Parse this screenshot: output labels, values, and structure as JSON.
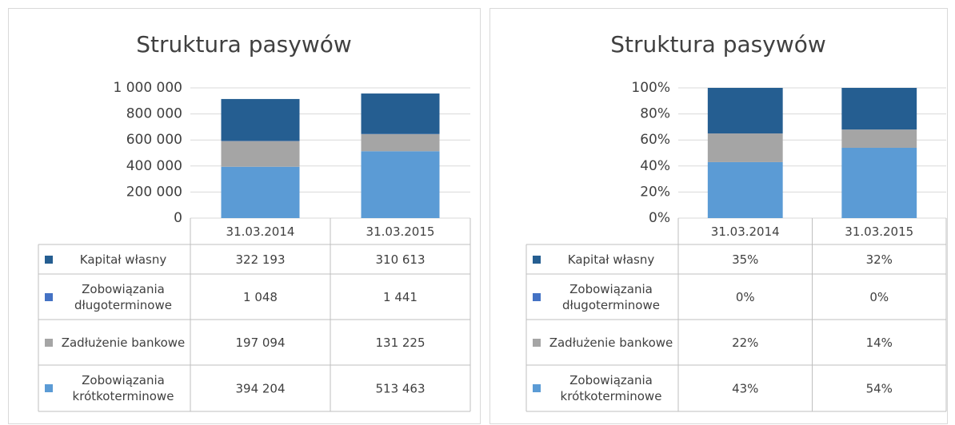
{
  "chart_data": [
    {
      "type": "bar",
      "stacked": true,
      "title": "Struktura pasywów",
      "categories": [
        "31.03.2014",
        "31.03.2015"
      ],
      "series": [
        {
          "name": "Kapitał własny",
          "color": "#255e91",
          "values": [
            322193,
            310613
          ],
          "value_labels": [
            "322 193",
            "310 613"
          ]
        },
        {
          "name": "Zobowiązania długoterminowe",
          "color": "#4472c4",
          "values": [
            1048,
            1441
          ],
          "value_labels": [
            "1 048",
            "1 441"
          ]
        },
        {
          "name": "Zadłużenie bankowe",
          "color": "#a5a5a5",
          "values": [
            197094,
            131225
          ],
          "value_labels": [
            "197 094",
            "131 225"
          ]
        },
        {
          "name": "Zobowiązania krótkoterminowe",
          "color": "#5b9bd5",
          "values": [
            394204,
            513463
          ],
          "value_labels": [
            "394 204",
            "513 463"
          ]
        }
      ],
      "ylim": [
        0,
        1000000
      ],
      "yticks": [
        0,
        {
          "value": 200000,
          "label": "200 000"
        },
        {
          "value": 400000,
          "label": "400 000"
        },
        {
          "value": 600000,
          "label": "600 000"
        },
        {
          "value": 800000,
          "label": "800 000"
        },
        {
          "value": 1000000,
          "label": "1 000 000"
        }
      ],
      "grid": true
    },
    {
      "type": "bar",
      "stacked": true,
      "title": "Struktura pasywów",
      "categories": [
        "31.03.2014",
        "31.03.2015"
      ],
      "series": [
        {
          "name": "Kapitał własny",
          "color": "#255e91",
          "values": [
            35,
            32
          ],
          "value_labels": [
            "35%",
            "32%"
          ]
        },
        {
          "name": "Zobowiązania długoterminowe",
          "color": "#4472c4",
          "values": [
            0,
            0
          ],
          "value_labels": [
            "0%",
            "0%"
          ]
        },
        {
          "name": "Zadłużenie bankowe",
          "color": "#a5a5a5",
          "values": [
            22,
            14
          ],
          "value_labels": [
            "22%",
            "14%"
          ]
        },
        {
          "name": "Zobowiązania krótkoterminowe",
          "color": "#5b9bd5",
          "values": [
            43,
            54
          ],
          "value_labels": [
            "43%",
            "54%"
          ]
        }
      ],
      "ylim": [
        0,
        100
      ],
      "yticks": [
        {
          "value": 0,
          "label": "0%"
        },
        {
          "value": 20,
          "label": "20%"
        },
        {
          "value": 40,
          "label": "40%"
        },
        {
          "value": 60,
          "label": "60%"
        },
        {
          "value": 80,
          "label": "80%"
        },
        {
          "value": 100,
          "label": "100%"
        }
      ],
      "grid": true
    }
  ]
}
